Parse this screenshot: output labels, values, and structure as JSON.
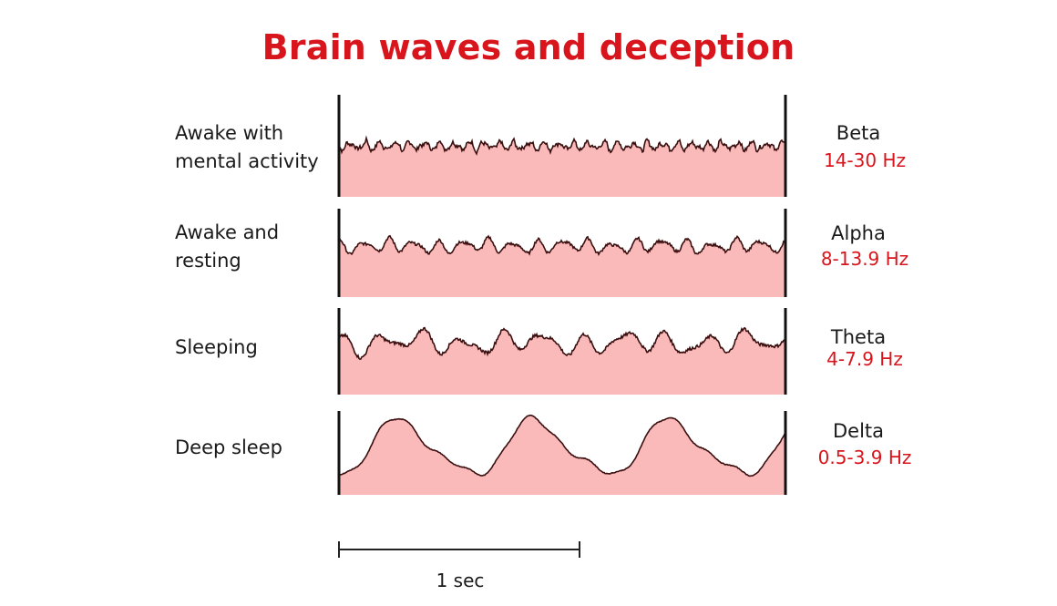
{
  "title": "Brain waves and deception",
  "rows": [
    {
      "state": "Awake with mental activity",
      "wave": "Beta",
      "freq": "14-30 Hz"
    },
    {
      "state": "Awake and resting",
      "wave": "Alpha",
      "freq": "8-13.9 Hz"
    },
    {
      "state": "Sleeping",
      "wave": "Theta",
      "freq": "4-7.9 Hz"
    },
    {
      "state": "Deep sleep",
      "wave": "Delta",
      "freq": "0.5-3.9 Hz"
    }
  ],
  "scale_bar": {
    "label": "1 sec"
  },
  "colors": {
    "title": "#d8141c",
    "freq": "#d8141c",
    "wave_fill": "#fbbaba",
    "wave_line": "#3b0f0f"
  }
}
